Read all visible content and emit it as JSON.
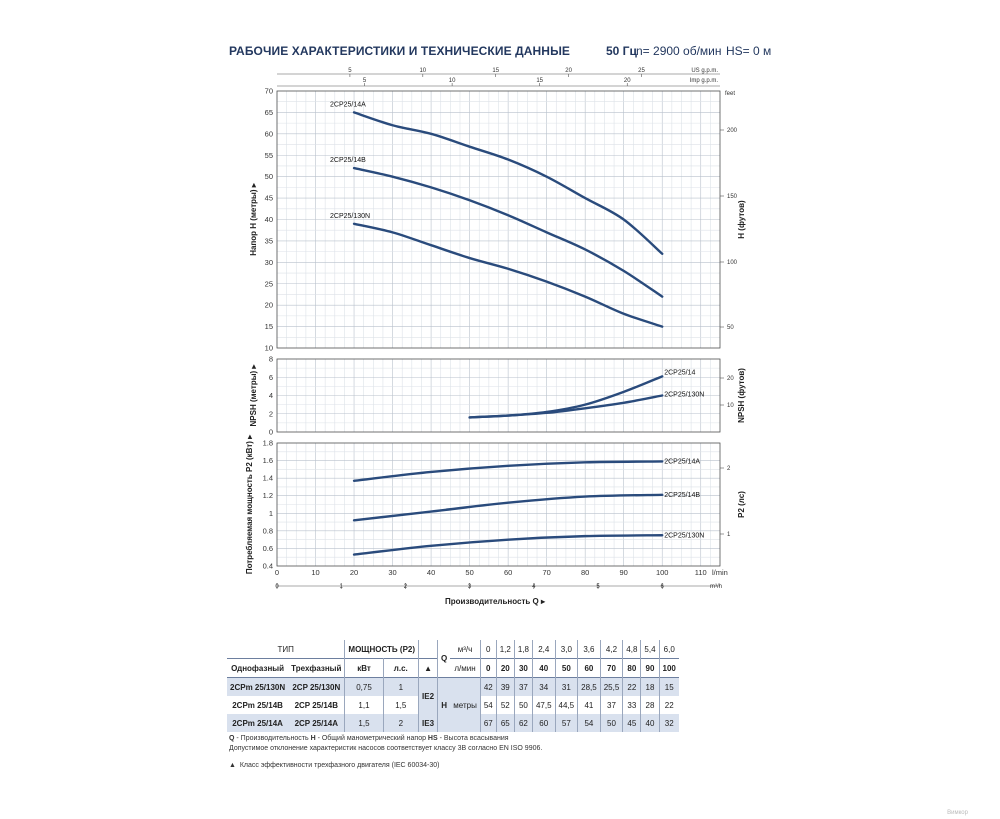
{
  "header": {
    "title": "РАБОЧИЕ ХАРАКТЕРИСТИКИ И ТЕХНИЧЕСКИЕ ДАННЫЕ",
    "frequency": "50 Гц",
    "rpm": "n= 2900 об/мин",
    "hs": "HS= 0 м"
  },
  "chart_data": [
    {
      "type": "line",
      "ylabel": "Напор H (метры)",
      "y2label": "H (футов)",
      "ylim": [
        10,
        70
      ],
      "xlim": [
        0,
        115
      ],
      "yticks": [
        10,
        15,
        20,
        25,
        30,
        35,
        40,
        45,
        50,
        55,
        60,
        65,
        70
      ],
      "y2ticks": [
        "50",
        "100",
        "150",
        "200"
      ],
      "y2unit": "feet",
      "top_scale_usgpm": {
        "unit": "US g.p.m.",
        "ticks": [
          "5",
          "10",
          "15",
          "20",
          "25"
        ]
      },
      "top_scale_impgpm": {
        "unit": "Imp g.p.m.",
        "ticks": [
          "5",
          "10",
          "15",
          "20"
        ]
      },
      "series": [
        {
          "name": "2CP25/14A",
          "x": [
            20,
            30,
            40,
            50,
            60,
            70,
            80,
            90,
            100
          ],
          "y": [
            65,
            62,
            60,
            57,
            54,
            50,
            45,
            40,
            32
          ]
        },
        {
          "name": "2CP25/14B",
          "x": [
            20,
            30,
            40,
            50,
            60,
            70,
            80,
            90,
            100
          ],
          "y": [
            52,
            50,
            47.5,
            44.5,
            41,
            37,
            33,
            28,
            22
          ]
        },
        {
          "name": "2CP25/130N",
          "x": [
            20,
            30,
            40,
            50,
            60,
            70,
            80,
            90,
            100
          ],
          "y": [
            39,
            37,
            34,
            31,
            28.5,
            25.5,
            22,
            18,
            15
          ]
        }
      ]
    },
    {
      "type": "line",
      "ylabel": "NPSH (метры)",
      "y2label": "NPSH (футов)",
      "ylim": [
        0,
        8
      ],
      "yticks": [
        0,
        2,
        4,
        6,
        8
      ],
      "y2ticks": [
        "10",
        "20"
      ],
      "series": [
        {
          "name": "2CP25/14",
          "x": [
            50,
            60,
            70,
            80,
            90,
            100
          ],
          "y": [
            1.6,
            1.8,
            2.2,
            3.0,
            4.4,
            6.1
          ]
        },
        {
          "name": "2CP25/130N",
          "x": [
            50,
            60,
            70,
            80,
            90,
            100
          ],
          "y": [
            1.6,
            1.8,
            2.1,
            2.6,
            3.2,
            4.0
          ]
        }
      ]
    },
    {
      "type": "line",
      "ylabel": "Потребляемая мощность P2 (кВт)",
      "y2label": "P2 (лс)",
      "ylim": [
        0.4,
        1.8
      ],
      "yticks": [
        0.4,
        0.6,
        0.8,
        1,
        1.2,
        1.4,
        1.6,
        1.8
      ],
      "y2ticks": [
        "1",
        "2"
      ],
      "xlabel": "Производительность Q",
      "xticks": [
        0,
        10,
        20,
        30,
        40,
        50,
        60,
        70,
        80,
        90,
        100,
        110
      ],
      "xunit": "l/min",
      "x2ticks": [
        "0",
        "1",
        "2",
        "3",
        "4",
        "5",
        "6"
      ],
      "x2unit": "m³/h",
      "series": [
        {
          "name": "2CP25/14A",
          "x": [
            20,
            40,
            60,
            80,
            100
          ],
          "y": [
            1.37,
            1.47,
            1.54,
            1.58,
            1.59
          ]
        },
        {
          "name": "2CP25/14B",
          "x": [
            20,
            40,
            60,
            80,
            100
          ],
          "y": [
            0.92,
            1.02,
            1.12,
            1.19,
            1.21
          ]
        },
        {
          "name": "2CP25/130N",
          "x": [
            20,
            40,
            60,
            80,
            100
          ],
          "y": [
            0.53,
            0.63,
            0.7,
            0.74,
            0.75
          ]
        }
      ]
    }
  ],
  "table": {
    "h_type": "ТИП",
    "h_power": "МОЩНОСТЬ (P2)",
    "h_single": "Однофазный",
    "h_three": "Трехфазный",
    "h_kw": "кВт",
    "h_hp": "л.с.",
    "q_label": "Q",
    "q_unit_m3": "м³/ч",
    "q_unit_l": "л/мин",
    "q_m3": [
      "0",
      "1,2",
      "1,8",
      "2,4",
      "3,0",
      "3,6",
      "4,2",
      "4,8",
      "5,4",
      "6,0"
    ],
    "q_l": [
      "0",
      "20",
      "30",
      "40",
      "50",
      "60",
      "70",
      "80",
      "90",
      "100"
    ],
    "h_label": "H",
    "h_unit": "метры",
    "ie2": "IE2",
    "ie3": "IE3",
    "rows": [
      {
        "single": "2CPm 25/130N",
        "three": "2CP 25/130N",
        "kw": "0,75",
        "hp": "1",
        "h": [
          "42",
          "39",
          "37",
          "34",
          "31",
          "28,5",
          "25,5",
          "22",
          "18",
          "15"
        ]
      },
      {
        "single": "2CPm 25/14B",
        "three": "2CP 25/14B",
        "kw": "1,1",
        "hp": "1,5",
        "h": [
          "54",
          "52",
          "50",
          "47,5",
          "44,5",
          "41",
          "37",
          "33",
          "28",
          "22"
        ]
      },
      {
        "single": "2CPm 25/14A",
        "three": "2CP 25/14A",
        "kw": "1,5",
        "hp": "2",
        "h": [
          "67",
          "65",
          "62",
          "60",
          "57",
          "54",
          "50",
          "45",
          "40",
          "32"
        ]
      }
    ]
  },
  "footnotes": {
    "line1_q": "Q",
    "line1_a": " - Производительность ",
    "line1_h": "H",
    "line1_b": " - Общий манометрический напор ",
    "line1_hs": "HS",
    "line1_c": " - Высота всасывания",
    "line2": "Допустимое отклонение характеристик насосов соответствует классу 3B согласно EN ISO 9906.",
    "line3": "Класс эффективности трехфазного двигателя (IEC 60034-30)"
  },
  "watermark": "Вимкор",
  "colors": {
    "curve": "#2a4b7c",
    "grid": "#b9c1cc",
    "grid_minor": "#dde2e8",
    "shade": "#d9e1ee"
  }
}
